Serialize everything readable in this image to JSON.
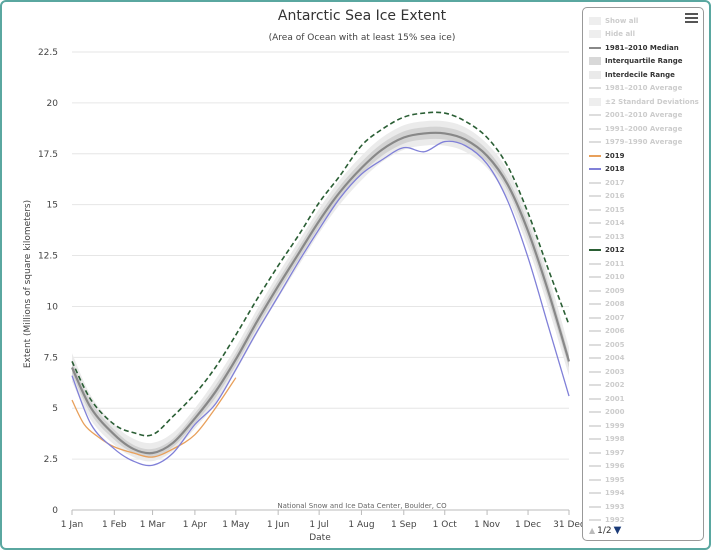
{
  "chart_data": {
    "type": "line",
    "title": "Antarctic Sea Ice Extent",
    "subtitle": "(Area of Ocean with at least 15% sea ice)",
    "xlabel": "Date",
    "ylabel": "Extent (Millions of square kilometers)",
    "credit": "National Snow and Ice Data Center, Boulder, CO",
    "x_tick_labels": [
      "1 Jan",
      "1 Feb",
      "1 Mar",
      "1 Apr",
      "1 May",
      "1 Jun",
      "1 Jul",
      "1 Aug",
      "1 Sep",
      "1 Oct",
      "1 Nov",
      "1 Dec",
      "31 Dec"
    ],
    "x_tick_days": [
      1,
      32,
      60,
      91,
      121,
      152,
      182,
      213,
      244,
      274,
      305,
      335,
      365
    ],
    "y_ticks": [
      0,
      2.5,
      5,
      7.5,
      10,
      12.5,
      15,
      17.5,
      20,
      22.5
    ],
    "ylim": [
      0,
      22.5
    ],
    "xlim": [
      1,
      365
    ],
    "grid": true,
    "legend_position": "right",
    "x_unit": "day of year",
    "series": [
      {
        "name": "1981–2010 Median",
        "color": "#888888",
        "style": "solid",
        "x": [
          1,
          15,
          32,
          46,
          60,
          75,
          91,
          106,
          121,
          136,
          152,
          167,
          182,
          197,
          213,
          228,
          244,
          259,
          274,
          289,
          305,
          320,
          335,
          350,
          365
        ],
        "y": [
          7.0,
          5.0,
          3.7,
          3.0,
          2.8,
          3.3,
          4.5,
          5.8,
          7.4,
          9.2,
          11.0,
          12.6,
          14.2,
          15.6,
          16.8,
          17.7,
          18.3,
          18.5,
          18.5,
          18.2,
          17.4,
          16.0,
          13.7,
          10.7,
          7.3
        ]
      },
      {
        "name": "2019",
        "color": "#e8a05b",
        "style": "solid",
        "x": [
          1,
          10,
          20,
          32,
          46,
          60,
          75,
          91,
          106,
          121
        ],
        "y": [
          5.4,
          4.2,
          3.6,
          3.1,
          2.8,
          2.6,
          3.0,
          3.7,
          5.0,
          6.5
        ]
      },
      {
        "name": "2018",
        "color": "#8080d8",
        "style": "solid",
        "x": [
          1,
          15,
          32,
          46,
          60,
          75,
          91,
          106,
          121,
          136,
          152,
          167,
          182,
          197,
          213,
          228,
          244,
          259,
          274,
          289,
          305,
          320,
          335,
          350,
          365
        ],
        "y": [
          6.6,
          4.2,
          3.0,
          2.4,
          2.2,
          2.8,
          4.2,
          5.2,
          6.9,
          8.7,
          10.5,
          12.2,
          13.8,
          15.3,
          16.5,
          17.2,
          17.8,
          17.6,
          18.1,
          17.9,
          17.0,
          15.2,
          12.4,
          9.0,
          5.6
        ]
      },
      {
        "name": "2012",
        "color": "#2a5e34",
        "style": "dash",
        "x": [
          1,
          15,
          32,
          46,
          60,
          75,
          91,
          106,
          121,
          136,
          152,
          167,
          182,
          197,
          213,
          228,
          244,
          259,
          274,
          289,
          305,
          320,
          335,
          350,
          365
        ],
        "y": [
          7.3,
          5.4,
          4.2,
          3.8,
          3.7,
          4.6,
          5.7,
          7.0,
          8.6,
          10.3,
          12.0,
          13.5,
          15.1,
          16.4,
          17.9,
          18.7,
          19.3,
          19.5,
          19.5,
          19.1,
          18.3,
          16.9,
          14.6,
          11.8,
          9.1
        ]
      }
    ],
    "bands": [
      {
        "name": "Interdecile Range",
        "color": "#ebebeb",
        "x": [
          1,
          15,
          32,
          46,
          60,
          75,
          91,
          106,
          121,
          136,
          152,
          167,
          182,
          197,
          213,
          228,
          244,
          259,
          274,
          289,
          305,
          320,
          335,
          350,
          365
        ],
        "low": [
          6.3,
          4.4,
          3.2,
          2.6,
          2.4,
          2.9,
          4.0,
          5.2,
          6.8,
          8.6,
          10.4,
          12.0,
          13.6,
          15.0,
          16.2,
          17.1,
          17.7,
          17.9,
          17.9,
          17.6,
          16.8,
          15.3,
          12.9,
          9.9,
          6.6
        ],
        "high": [
          7.7,
          5.6,
          4.2,
          3.5,
          3.3,
          3.8,
          5.0,
          6.4,
          8.0,
          9.8,
          11.6,
          13.2,
          14.8,
          16.2,
          17.4,
          18.3,
          18.9,
          19.1,
          19.1,
          18.8,
          18.0,
          16.7,
          14.5,
          11.5,
          8.0
        ]
      },
      {
        "name": "Interquartile Range",
        "color": "#d3d3d3",
        "x": [
          1,
          15,
          32,
          46,
          60,
          75,
          91,
          106,
          121,
          136,
          152,
          167,
          182,
          197,
          213,
          228,
          244,
          259,
          274,
          289,
          305,
          320,
          335,
          350,
          365
        ],
        "low": [
          6.7,
          4.7,
          3.45,
          2.8,
          2.6,
          3.1,
          4.25,
          5.5,
          7.1,
          8.9,
          10.7,
          12.3,
          13.9,
          15.3,
          16.5,
          17.4,
          18.0,
          18.2,
          18.2,
          17.9,
          17.1,
          15.7,
          13.3,
          10.3,
          7.0
        ],
        "high": [
          7.3,
          5.3,
          3.95,
          3.2,
          3.0,
          3.5,
          4.75,
          6.1,
          7.7,
          9.5,
          11.3,
          12.9,
          14.5,
          15.9,
          17.1,
          18.0,
          18.6,
          18.8,
          18.8,
          18.5,
          17.7,
          16.3,
          14.1,
          11.1,
          7.6
        ]
      }
    ]
  },
  "legend": {
    "items": [
      {
        "label": "Show all",
        "sym": "box",
        "visible": false
      },
      {
        "label": "Hide all",
        "sym": "box",
        "visible": false
      },
      {
        "label": "1981–2010 Median",
        "sym": "line",
        "color": "#888888",
        "visible": true
      },
      {
        "label": "Interquartile Range",
        "sym": "box",
        "visible": true
      },
      {
        "label": "Interdecile Range",
        "sym": "box-light",
        "visible": true
      },
      {
        "label": "1981–2010 Average",
        "sym": "line",
        "color": "#dddddd",
        "visible": false
      },
      {
        "label": "±2 Standard Deviations",
        "sym": "box",
        "visible": false
      },
      {
        "label": "2001–2010 Average",
        "sym": "line",
        "color": "#dddddd",
        "visible": false
      },
      {
        "label": "1991–2000 Average",
        "sym": "line",
        "color": "#dddddd",
        "visible": false
      },
      {
        "label": "1979–1990 Average",
        "sym": "line",
        "color": "#dddddd",
        "visible": false
      },
      {
        "label": "2019",
        "sym": "line",
        "color": "#e8a05b",
        "visible": true
      },
      {
        "label": "2018",
        "sym": "line",
        "color": "#8080d8",
        "visible": true
      },
      {
        "label": "2017",
        "sym": "line",
        "color": "#dddddd",
        "visible": false
      },
      {
        "label": "2016",
        "sym": "line",
        "color": "#dddddd",
        "visible": false
      },
      {
        "label": "2015",
        "sym": "line",
        "color": "#dddddd",
        "visible": false
      },
      {
        "label": "2014",
        "sym": "line",
        "color": "#dddddd",
        "visible": false
      },
      {
        "label": "2013",
        "sym": "line",
        "color": "#dddddd",
        "visible": false
      },
      {
        "label": "2012",
        "sym": "dash",
        "color": "#2a5e34",
        "visible": true
      },
      {
        "label": "2011",
        "sym": "line",
        "color": "#dddddd",
        "visible": false
      },
      {
        "label": "2010",
        "sym": "line",
        "color": "#dddddd",
        "visible": false
      },
      {
        "label": "2009",
        "sym": "line",
        "color": "#dddddd",
        "visible": false
      },
      {
        "label": "2008",
        "sym": "line",
        "color": "#dddddd",
        "visible": false
      },
      {
        "label": "2007",
        "sym": "line",
        "color": "#dddddd",
        "visible": false
      },
      {
        "label": "2006",
        "sym": "line",
        "color": "#dddddd",
        "visible": false
      },
      {
        "label": "2005",
        "sym": "line",
        "color": "#dddddd",
        "visible": false
      },
      {
        "label": "2004",
        "sym": "line",
        "color": "#dddddd",
        "visible": false
      },
      {
        "label": "2003",
        "sym": "line",
        "color": "#dddddd",
        "visible": false
      },
      {
        "label": "2002",
        "sym": "line",
        "color": "#dddddd",
        "visible": false
      },
      {
        "label": "2001",
        "sym": "line",
        "color": "#dddddd",
        "visible": false
      },
      {
        "label": "2000",
        "sym": "line",
        "color": "#dddddd",
        "visible": false
      },
      {
        "label": "1999",
        "sym": "line",
        "color": "#dddddd",
        "visible": false
      },
      {
        "label": "1998",
        "sym": "line",
        "color": "#dddddd",
        "visible": false
      },
      {
        "label": "1997",
        "sym": "line",
        "color": "#dddddd",
        "visible": false
      },
      {
        "label": "1996",
        "sym": "line",
        "color": "#dddddd",
        "visible": false
      },
      {
        "label": "1995",
        "sym": "line",
        "color": "#dddddd",
        "visible": false
      },
      {
        "label": "1994",
        "sym": "line",
        "color": "#dddddd",
        "visible": false
      },
      {
        "label": "1993",
        "sym": "line",
        "color": "#dddddd",
        "visible": false
      },
      {
        "label": "1992",
        "sym": "line",
        "color": "#dddddd",
        "visible": false
      }
    ],
    "pager": {
      "text": "1/2",
      "up_icon": "triangle-up-icon",
      "down_icon": "triangle-down-icon"
    },
    "menu_icon": "hamburger-menu-icon"
  }
}
